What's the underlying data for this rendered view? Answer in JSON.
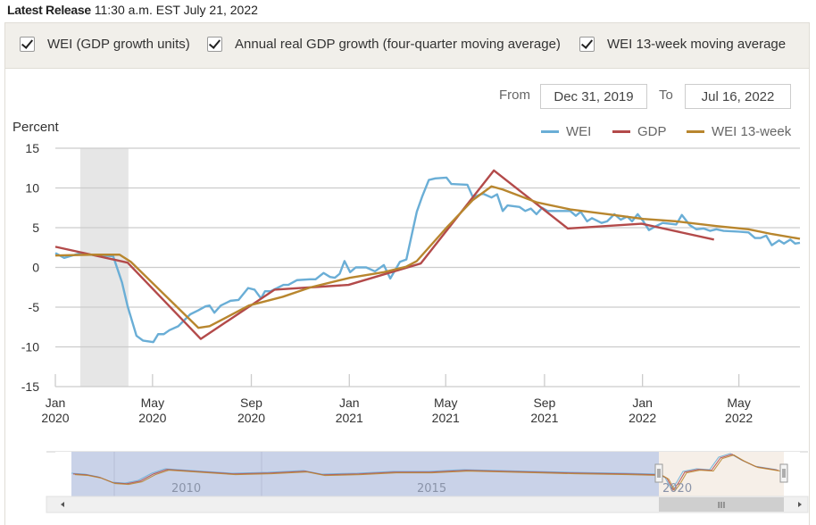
{
  "release": {
    "label": "Latest Release",
    "text": "11:30 a.m. EST July 21, 2022"
  },
  "toggles": [
    {
      "label": "WEI (GDP growth units)",
      "checked": true
    },
    {
      "label": "Annual real GDP growth (four-quarter moving average)",
      "checked": true
    },
    {
      "label": "WEI 13-week moving average",
      "checked": true
    }
  ],
  "range": {
    "from_label": "From",
    "from": "Dec 31, 2019",
    "to_label": "To",
    "to": "Jul 16, 2022"
  },
  "navigator": {
    "labels": [
      "2010",
      "2015",
      "2020"
    ],
    "scroll_grip": "III"
  },
  "colors": {
    "WEI": "#6aaed6",
    "GDP": "#b34a4a",
    "WEI 13-week": "#b8862e",
    "recession": "#e6e6e6"
  },
  "chart_data": {
    "type": "line",
    "ylabel": "Percent",
    "ylim": [
      -15,
      15
    ],
    "yticks": [
      15,
      10,
      5,
      0,
      -5,
      -10,
      -15
    ],
    "xlim": [
      "2020-01-01",
      "2022-07-16"
    ],
    "xticks": [
      {
        "date": "2020-01-01",
        "label": [
          "Jan",
          "2020"
        ]
      },
      {
        "date": "2020-05-01",
        "label": [
          "May",
          "2020"
        ]
      },
      {
        "date": "2020-09-01",
        "label": [
          "Sep",
          "2020"
        ]
      },
      {
        "date": "2021-01-01",
        "label": [
          "Jan",
          "2021"
        ]
      },
      {
        "date": "2021-05-01",
        "label": [
          "May",
          "2021"
        ]
      },
      {
        "date": "2021-09-01",
        "label": [
          "Sep",
          "2021"
        ]
      },
      {
        "date": "2022-01-01",
        "label": [
          "Jan",
          "2022"
        ]
      },
      {
        "date": "2022-05-01",
        "label": [
          "May",
          "2022"
        ]
      }
    ],
    "grid": true,
    "legend": "top-right",
    "recession_band": [
      "2020-02-01",
      "2020-04-01"
    ],
    "series": [
      {
        "name": "WEI",
        "points": [
          [
            "2020-01-01",
            1.8
          ],
          [
            "2020-01-12",
            1.2
          ],
          [
            "2020-01-29",
            1.7
          ],
          [
            "2020-03-13",
            1.4
          ],
          [
            "2020-03-24",
            -1.9
          ],
          [
            "2020-03-31",
            -4.9
          ],
          [
            "2020-04-11",
            -8.6
          ],
          [
            "2020-04-19",
            -9.2
          ],
          [
            "2020-05-02",
            -9.4
          ],
          [
            "2020-05-08",
            -8.4
          ],
          [
            "2020-05-15",
            -8.4
          ],
          [
            "2020-05-22",
            -7.9
          ],
          [
            "2020-06-02",
            -7.4
          ],
          [
            "2020-06-17",
            -5.9
          ],
          [
            "2020-06-27",
            -5.4
          ],
          [
            "2020-07-06",
            -4.9
          ],
          [
            "2020-07-11",
            -4.8
          ],
          [
            "2020-07-17",
            -5.7
          ],
          [
            "2020-07-25",
            -4.8
          ],
          [
            "2020-08-06",
            -4.2
          ],
          [
            "2020-08-16",
            -4.1
          ],
          [
            "2020-08-28",
            -2.6
          ],
          [
            "2020-09-05",
            -2.8
          ],
          [
            "2020-09-13",
            -3.9
          ],
          [
            "2020-09-18",
            -3.0
          ],
          [
            "2020-09-25",
            -3.0
          ],
          [
            "2020-10-11",
            -2.2
          ],
          [
            "2020-10-17",
            -2.2
          ],
          [
            "2020-10-28",
            -1.6
          ],
          [
            "2020-11-13",
            -1.5
          ],
          [
            "2020-11-20",
            -1.5
          ],
          [
            "2020-11-30",
            -0.7
          ],
          [
            "2020-12-08",
            -1.2
          ],
          [
            "2020-12-14",
            -1.3
          ],
          [
            "2020-12-20",
            -0.8
          ],
          [
            "2020-12-26",
            0.8
          ],
          [
            "2021-01-02",
            -0.6
          ],
          [
            "2021-01-09",
            0.0
          ],
          [
            "2021-01-22",
            0.0
          ],
          [
            "2021-02-02",
            -0.5
          ],
          [
            "2021-02-13",
            0.3
          ],
          [
            "2021-02-21",
            -1.4
          ],
          [
            "2021-03-05",
            0.7
          ],
          [
            "2021-03-13",
            1.0
          ],
          [
            "2021-03-26",
            7.0
          ],
          [
            "2021-04-02",
            9.0
          ],
          [
            "2021-04-10",
            11.0
          ],
          [
            "2021-04-18",
            11.2
          ],
          [
            "2021-05-02",
            11.3
          ],
          [
            "2021-05-08",
            10.5
          ],
          [
            "2021-05-28",
            10.4
          ],
          [
            "2021-06-04",
            8.8
          ],
          [
            "2021-06-16",
            9.3
          ],
          [
            "2021-06-27",
            8.8
          ],
          [
            "2021-07-04",
            9.2
          ],
          [
            "2021-07-11",
            7.1
          ],
          [
            "2021-07-17",
            7.8
          ],
          [
            "2021-08-01",
            7.6
          ],
          [
            "2021-08-08",
            7.1
          ],
          [
            "2021-08-15",
            7.4
          ],
          [
            "2021-08-22",
            6.7
          ],
          [
            "2021-08-29",
            7.5
          ],
          [
            "2021-09-05",
            7.1
          ],
          [
            "2021-10-03",
            7.1
          ],
          [
            "2021-10-10",
            6.5
          ],
          [
            "2021-10-16",
            7.0
          ],
          [
            "2021-10-24",
            5.8
          ],
          [
            "2021-10-30",
            6.2
          ],
          [
            "2021-11-11",
            5.6
          ],
          [
            "2021-11-18",
            5.8
          ],
          [
            "2021-11-27",
            6.7
          ],
          [
            "2021-12-05",
            6.0
          ],
          [
            "2021-12-13",
            6.4
          ],
          [
            "2021-12-19",
            5.8
          ],
          [
            "2021-12-26",
            6.7
          ],
          [
            "2022-01-02",
            5.8
          ],
          [
            "2022-01-09",
            4.7
          ],
          [
            "2022-01-16",
            5.1
          ],
          [
            "2022-01-26",
            5.6
          ],
          [
            "2022-02-12",
            5.4
          ],
          [
            "2022-02-19",
            6.6
          ],
          [
            "2022-03-01",
            5.3
          ],
          [
            "2022-03-09",
            4.8
          ],
          [
            "2022-03-18",
            4.9
          ],
          [
            "2022-03-26",
            4.6
          ],
          [
            "2022-04-03",
            4.8
          ],
          [
            "2022-04-12",
            4.6
          ],
          [
            "2022-05-01",
            4.5
          ],
          [
            "2022-05-13",
            4.4
          ],
          [
            "2022-05-21",
            3.7
          ],
          [
            "2022-05-28",
            3.7
          ],
          [
            "2022-06-04",
            4.0
          ],
          [
            "2022-06-11",
            2.8
          ],
          [
            "2022-06-20",
            3.4
          ],
          [
            "2022-06-26",
            3.0
          ],
          [
            "2022-07-04",
            3.5
          ],
          [
            "2022-07-10",
            3.0
          ],
          [
            "2022-07-16",
            3.1
          ]
        ]
      },
      {
        "name": "GDP",
        "points": [
          [
            "2019-12-31",
            2.6
          ],
          [
            "2020-03-31",
            0.6
          ],
          [
            "2020-06-30",
            -9.0
          ],
          [
            "2020-09-30",
            -2.8
          ],
          [
            "2020-12-31",
            -2.2
          ],
          [
            "2021-03-31",
            0.5
          ],
          [
            "2021-06-30",
            12.2
          ],
          [
            "2021-09-30",
            4.9
          ],
          [
            "2021-12-31",
            5.5
          ],
          [
            "2022-03-31",
            3.5
          ]
        ]
      },
      {
        "name": "WEI 13-week",
        "points": [
          [
            "2020-01-01",
            1.5
          ],
          [
            "2020-02-15",
            1.6
          ],
          [
            "2020-03-21",
            1.6
          ],
          [
            "2020-04-04",
            0.7
          ],
          [
            "2020-06-27",
            -7.6
          ],
          [
            "2020-07-11",
            -7.4
          ],
          [
            "2020-08-29",
            -4.8
          ],
          [
            "2020-10-10",
            -3.7
          ],
          [
            "2020-11-14",
            -2.5
          ],
          [
            "2021-01-02",
            -1.3
          ],
          [
            "2021-02-13",
            -0.6
          ],
          [
            "2021-03-13",
            0.1
          ],
          [
            "2021-03-26",
            0.8
          ],
          [
            "2021-05-02",
            5.0
          ],
          [
            "2021-06-04",
            8.5
          ],
          [
            "2021-06-27",
            10.2
          ],
          [
            "2021-07-11",
            9.8
          ],
          [
            "2021-08-22",
            8.2
          ],
          [
            "2021-10-03",
            7.3
          ],
          [
            "2021-11-18",
            6.7
          ],
          [
            "2022-01-02",
            6.1
          ],
          [
            "2022-02-12",
            5.8
          ],
          [
            "2022-04-03",
            5.2
          ],
          [
            "2022-05-13",
            4.8
          ],
          [
            "2022-06-11",
            4.2
          ],
          [
            "2022-07-16",
            3.6
          ]
        ]
      }
    ]
  }
}
